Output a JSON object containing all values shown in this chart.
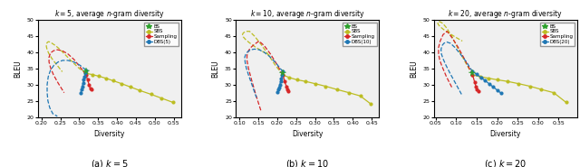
{
  "panels": [
    {
      "title": "$k = 5$, average $n$-gram diversity",
      "xlabel": "Diversity",
      "ylabel": "BLEU",
      "xlim": [
        0.19,
        0.57
      ],
      "ylim": [
        20,
        50
      ],
      "xticks": [
        0.2,
        0.25,
        0.3,
        0.35,
        0.4,
        0.45,
        0.5,
        0.55
      ],
      "caption": "(a) $k=5$",
      "legend_label": "DBS(5)",
      "BS": {
        "x": [
          0.318
        ],
        "y": [
          34.0
        ]
      },
      "SBS_solid": {
        "x": [
          0.318,
          0.335,
          0.352,
          0.37,
          0.39,
          0.412,
          0.435,
          0.46,
          0.49,
          0.518,
          0.548
        ],
        "y": [
          33.5,
          33.1,
          32.6,
          32.0,
          31.2,
          30.3,
          29.3,
          28.2,
          27.0,
          25.8,
          24.5
        ]
      },
      "SBS_dashed": {
        "x": [
          0.318,
          0.3,
          0.282,
          0.265,
          0.25,
          0.238,
          0.228,
          0.222,
          0.218,
          0.215,
          0.213,
          0.213,
          0.215,
          0.22,
          0.228,
          0.24,
          0.255
        ],
        "y": [
          33.5,
          35.0,
          37.0,
          39.0,
          40.8,
          42.0,
          42.8,
          43.2,
          43.3,
          43.0,
          42.5,
          41.8,
          40.8,
          39.5,
          38.0,
          36.2,
          34.0
        ]
      },
      "Sampling_solid": {
        "x": [
          0.318,
          0.322,
          0.326,
          0.329,
          0.332
        ],
        "y": [
          33.0,
          31.5,
          30.0,
          28.8,
          28.5
        ]
      },
      "Sampling_dashed": {
        "x": [
          0.318,
          0.302,
          0.286,
          0.27,
          0.255,
          0.242,
          0.232,
          0.224,
          0.22,
          0.22,
          0.224,
          0.232,
          0.244,
          0.26
        ],
        "y": [
          33.0,
          35.5,
          37.8,
          39.5,
          40.5,
          40.8,
          40.5,
          39.8,
          38.5,
          37.0,
          35.2,
          33.0,
          30.5,
          27.5
        ]
      },
      "DBS_solid": {
        "x": [
          0.318,
          0.316,
          0.314,
          0.312,
          0.31,
          0.308,
          0.306,
          0.304
        ],
        "y": [
          34.5,
          33.5,
          32.5,
          31.5,
          30.5,
          29.5,
          28.5,
          27.5
        ]
      },
      "DBS_dashed": {
        "x": [
          0.318,
          0.302,
          0.286,
          0.27,
          0.256,
          0.244,
          0.233,
          0.224,
          0.218,
          0.215,
          0.215,
          0.217,
          0.222,
          0.23,
          0.242
        ],
        "y": [
          34.5,
          36.0,
          37.0,
          37.5,
          37.5,
          37.0,
          36.0,
          34.5,
          32.5,
          30.0,
          27.5,
          25.0,
          22.8,
          21.0,
          20.2
        ]
      }
    },
    {
      "title": "$k = 10$, average $n$-gram diversity",
      "xlabel": "Diversity",
      "ylabel": "BLEU",
      "xlim": [
        0.09,
        0.47
      ],
      "ylim": [
        20,
        50
      ],
      "xticks": [
        0.1,
        0.15,
        0.2,
        0.25,
        0.3,
        0.35,
        0.4,
        0.45
      ],
      "caption": "(b) $k=10$",
      "legend_label": "DBS(10)",
      "BS": {
        "x": [
          0.215
        ],
        "y": [
          33.5
        ]
      },
      "SBS_solid": {
        "x": [
          0.215,
          0.232,
          0.252,
          0.275,
          0.3,
          0.328,
          0.358,
          0.39,
          0.42,
          0.448
        ],
        "y": [
          33.0,
          32.2,
          31.5,
          31.0,
          30.3,
          29.5,
          28.5,
          27.5,
          26.5,
          24.0
        ]
      },
      "SBS_dashed": {
        "x": [
          0.215,
          0.195,
          0.175,
          0.157,
          0.14,
          0.127,
          0.117,
          0.11,
          0.108,
          0.11,
          0.116,
          0.126,
          0.14,
          0.158,
          0.18
        ],
        "y": [
          33.0,
          36.0,
          39.5,
          42.5,
          45.0,
          46.5,
          46.5,
          46.0,
          45.5,
          44.8,
          44.0,
          43.0,
          41.8,
          40.5,
          39.0
        ]
      },
      "Sampling_solid": {
        "x": [
          0.215,
          0.22,
          0.224,
          0.227,
          0.23
        ],
        "y": [
          33.0,
          31.0,
          29.5,
          28.5,
          28.0
        ]
      },
      "Sampling_dashed": {
        "x": [
          0.215,
          0.198,
          0.182,
          0.166,
          0.152,
          0.14,
          0.13,
          0.124,
          0.12,
          0.12,
          0.124,
          0.132,
          0.143,
          0.158
        ],
        "y": [
          33.0,
          36.5,
          39.5,
          42.0,
          43.5,
          42.5,
          41.5,
          40.5,
          39.0,
          37.5,
          35.0,
          31.5,
          27.0,
          21.5
        ]
      },
      "DBS_solid": {
        "x": [
          0.215,
          0.213,
          0.211,
          0.209,
          0.207,
          0.205,
          0.203,
          0.201
        ],
        "y": [
          34.0,
          33.0,
          32.0,
          31.0,
          30.0,
          29.2,
          28.5,
          27.8
        ]
      },
      "DBS_dashed": {
        "x": [
          0.215,
          0.198,
          0.182,
          0.166,
          0.152,
          0.14,
          0.13,
          0.122,
          0.117,
          0.114,
          0.115,
          0.118,
          0.124,
          0.133,
          0.145
        ],
        "y": [
          34.0,
          36.5,
          38.5,
          40.0,
          40.8,
          41.0,
          40.8,
          40.2,
          39.5,
          38.5,
          37.0,
          35.2,
          33.0,
          30.0,
          26.0
        ]
      }
    },
    {
      "title": "$k = 20$, average $n$-gram diversity",
      "xlabel": "Diversity",
      "ylabel": "BLEU",
      "xlim": [
        0.045,
        0.395
      ],
      "ylim": [
        20,
        50
      ],
      "xticks": [
        0.05,
        0.1,
        0.15,
        0.2,
        0.25,
        0.3,
        0.35
      ],
      "caption": "(c) $k=20$",
      "legend_label": "DBS(20)",
      "BS": {
        "x": [
          0.14
        ],
        "y": [
          33.5
        ]
      },
      "SBS_solid": {
        "x": [
          0.14,
          0.158,
          0.178,
          0.2,
          0.225,
          0.252,
          0.28,
          0.308,
          0.338,
          0.368
        ],
        "y": [
          33.0,
          32.5,
          32.0,
          31.5,
          31.0,
          30.3,
          29.5,
          28.5,
          27.5,
          24.5
        ]
      },
      "SBS_dashed": {
        "x": [
          0.14,
          0.122,
          0.105,
          0.09,
          0.077,
          0.067,
          0.06,
          0.056,
          0.055,
          0.057,
          0.062,
          0.07,
          0.082,
          0.097,
          0.115
        ],
        "y": [
          33.0,
          37.0,
          41.0,
          44.8,
          47.5,
          49.0,
          49.5,
          49.5,
          49.0,
          48.5,
          47.8,
          47.0,
          46.0,
          44.8,
          43.5
        ]
      },
      "Sampling_solid": {
        "x": [
          0.14,
          0.145,
          0.148,
          0.151,
          0.154
        ],
        "y": [
          33.0,
          30.8,
          29.5,
          28.5,
          28.0
        ]
      },
      "Sampling_dashed": {
        "x": [
          0.14,
          0.122,
          0.105,
          0.09,
          0.078,
          0.068,
          0.061,
          0.057,
          0.057,
          0.06,
          0.066,
          0.076,
          0.09
        ],
        "y": [
          33.0,
          37.5,
          41.5,
          44.5,
          46.5,
          45.5,
          43.5,
          41.5,
          39.5,
          37.5,
          35.5,
          32.5,
          29.0
        ]
      },
      "DBS_solid": {
        "x": [
          0.14,
          0.15,
          0.16,
          0.17,
          0.18,
          0.19,
          0.2,
          0.21
        ],
        "y": [
          34.0,
          33.2,
          32.3,
          31.3,
          30.3,
          29.3,
          28.3,
          27.3
        ]
      },
      "DBS_dashed": {
        "x": [
          0.14,
          0.125,
          0.11,
          0.097,
          0.086,
          0.077,
          0.07,
          0.065,
          0.063,
          0.064,
          0.068,
          0.075,
          0.085,
          0.098,
          0.113
        ],
        "y": [
          34.0,
          37.0,
          39.5,
          41.5,
          42.8,
          43.2,
          42.8,
          42.0,
          40.8,
          39.5,
          38.0,
          36.0,
          33.5,
          30.5,
          27.0
        ]
      }
    }
  ],
  "colors": {
    "BS": "#2ca02c",
    "SBS": "#bcbd22",
    "Sampling": "#d62728",
    "DBS": "#1f77b4"
  }
}
